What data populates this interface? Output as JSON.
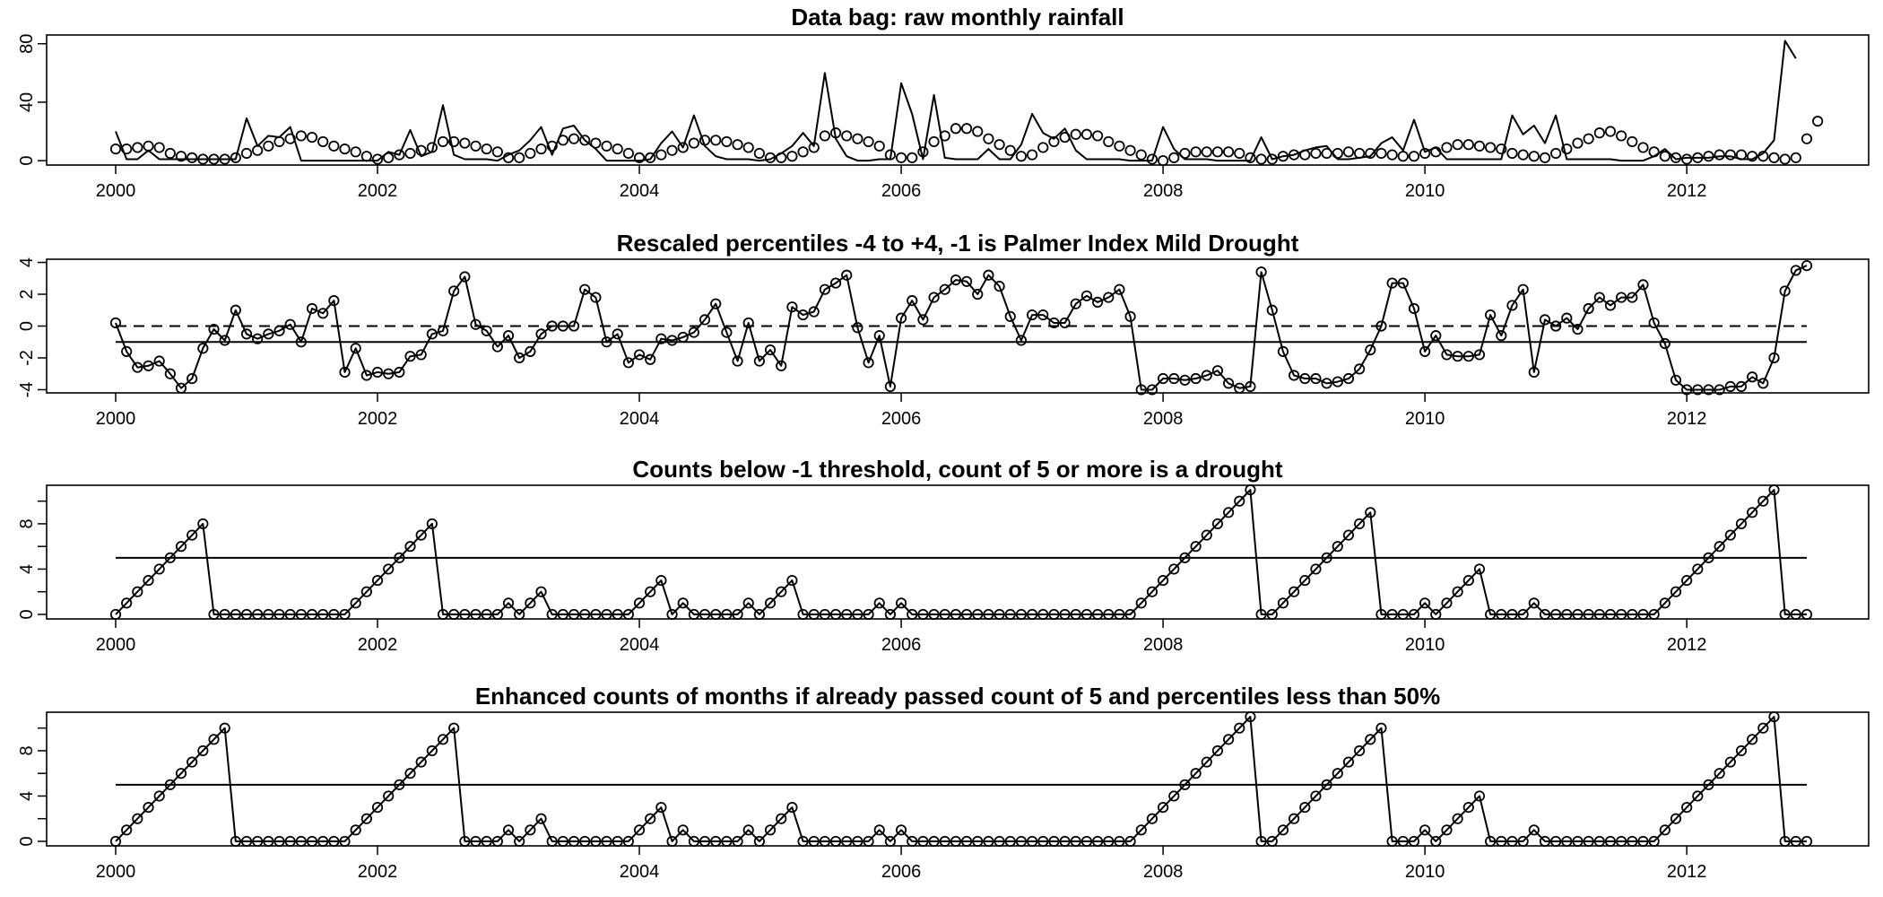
{
  "chart_data": [
    {
      "type": "line",
      "title": "Data bag: raw monthly rainfall",
      "x_start": 2000,
      "months": 156,
      "x_ticks": [
        2000,
        2002,
        2004,
        2006,
        2008,
        2010,
        2012
      ],
      "y_ticks": [
        0,
        40,
        80
      ],
      "ylim": [
        -3,
        86
      ],
      "series": [
        {
          "style": "line",
          "values": [
            20,
            1,
            1,
            7,
            1,
            1,
            1,
            1,
            1,
            1,
            1,
            1,
            29,
            10,
            17,
            16,
            23,
            0,
            0,
            0,
            0,
            0,
            0,
            0,
            0,
            6,
            4,
            21,
            3,
            6,
            38,
            4,
            1,
            1,
            1,
            0,
            4,
            7,
            14,
            23,
            4,
            22,
            24,
            14,
            8,
            0,
            0,
            0,
            0,
            1,
            12,
            20,
            9,
            31,
            10,
            3,
            1,
            1,
            1,
            0,
            1,
            5,
            10,
            19,
            10,
            60,
            15,
            3,
            0,
            0,
            1,
            1,
            53,
            32,
            1,
            45,
            2,
            1,
            1,
            1,
            8,
            1,
            1,
            11,
            32,
            19,
            15,
            22,
            7,
            1,
            1,
            1,
            1,
            0,
            0,
            0,
            23,
            8,
            1,
            1,
            1,
            0,
            0,
            0,
            0,
            16,
            1,
            3,
            4,
            7,
            9,
            10,
            1,
            1,
            2,
            3,
            12,
            16,
            7,
            28,
            6,
            9,
            1,
            1,
            1,
            1,
            1,
            1,
            31,
            18,
            24,
            12,
            31,
            1,
            1,
            1,
            1,
            1,
            0,
            0,
            0,
            3,
            8,
            1,
            2,
            2,
            2,
            3,
            3,
            1,
            1,
            5,
            14,
            82,
            70
          ]
        },
        {
          "style": "points",
          "values": [
            8,
            8,
            9,
            10,
            9,
            5,
            3,
            2,
            1,
            1,
            1,
            2,
            5,
            7,
            10,
            13,
            15,
            17,
            16,
            13,
            10,
            8,
            6,
            3,
            1,
            2,
            4,
            5,
            7,
            9,
            13,
            13,
            12,
            10,
            8,
            6,
            2,
            2,
            5,
            8,
            10,
            14,
            15,
            14,
            12,
            10,
            8,
            5,
            2,
            2,
            4,
            7,
            9,
            12,
            14,
            14,
            13,
            11,
            9,
            5,
            2,
            2,
            3,
            6,
            9,
            17,
            19,
            17,
            15,
            13,
            10,
            4,
            2,
            2,
            6,
            13,
            17,
            22,
            22,
            20,
            15,
            11,
            7,
            3,
            4,
            9,
            13,
            16,
            18,
            18,
            17,
            13,
            10,
            7,
            4,
            1,
            0,
            2,
            5,
            6,
            6,
            6,
            6,
            5,
            2,
            1,
            1,
            3,
            4,
            4,
            5,
            5,
            5,
            6,
            5,
            5,
            5,
            4,
            3,
            3,
            5,
            6,
            9,
            11,
            11,
            10,
            9,
            8,
            5,
            4,
            3,
            2,
            5,
            8,
            12,
            15,
            19,
            20,
            17,
            13,
            9,
            6,
            3,
            2,
            1,
            2,
            3,
            4,
            4,
            4,
            3,
            3,
            2,
            1,
            2,
            15,
            27
          ]
        }
      ]
    },
    {
      "type": "line",
      "title": "Rescaled percentiles -4 to +4, -1 is Palmer Index Mild Drought",
      "x_start": 2000,
      "months": 156,
      "x_ticks": [
        2000,
        2002,
        2004,
        2006,
        2008,
        2010,
        2012
      ],
      "y_ticks": [
        -4,
        -2,
        0,
        2,
        4
      ],
      "ylim": [
        -4.2,
        4.2
      ],
      "reference_lines": [
        {
          "y": 0,
          "dash": true
        },
        {
          "y": -1,
          "dash": false
        }
      ],
      "series": [
        {
          "style": "line+points",
          "values": [
            0.2,
            -1.6,
            -2.6,
            -2.5,
            -2.2,
            -3,
            -3.9,
            -3.3,
            -1.4,
            -0.2,
            -0.9,
            1,
            -0.5,
            -0.8,
            -0.5,
            -0.3,
            0.1,
            -1,
            1.1,
            0.8,
            1.6,
            -2.9,
            -1.4,
            -3.1,
            -2.9,
            -3,
            -2.9,
            -1.9,
            -1.8,
            -0.5,
            -0.3,
            2.2,
            3.1,
            0.1,
            -0.3,
            -1.3,
            -0.6,
            -2,
            -1.6,
            -0.5,
            0,
            0,
            0,
            2.3,
            1.8,
            -1,
            -0.5,
            -2.3,
            -1.8,
            -2.1,
            -0.8,
            -0.9,
            -0.7,
            -0.4,
            0.4,
            1.4,
            -0.4,
            -2.2,
            0.2,
            -2.2,
            -1.5,
            -2.5,
            1.2,
            0.7,
            0.9,
            2.3,
            2.7,
            3.2,
            -0.1,
            -2.3,
            -0.6,
            -3.8,
            0.5,
            1.6,
            0.4,
            1.8,
            2.3,
            2.9,
            2.8,
            2,
            3.2,
            2.5,
            0.6,
            -0.9,
            0.7,
            0.7,
            0.2,
            0.2,
            1.4,
            1.9,
            1.5,
            1.8,
            2.3,
            0.6,
            -4,
            -4,
            -3.3,
            -3.3,
            -3.4,
            -3.3,
            -3.1,
            -2.8,
            -3.6,
            -3.9,
            -3.8,
            3.4,
            1,
            -1.6,
            -3.1,
            -3.3,
            -3.3,
            -3.6,
            -3.5,
            -3.3,
            -2.7,
            -1.5,
            0,
            2.7,
            2.7,
            1.1,
            -1.6,
            -0.6,
            -1.8,
            -1.9,
            -1.9,
            -1.8,
            0.7,
            -0.6,
            1.3,
            2.3,
            -2.9,
            0.4,
            0,
            0.5,
            -0.2,
            1.1,
            1.8,
            1.3,
            1.8,
            1.8,
            2.6,
            0.2,
            -1.1,
            -3.4,
            -4,
            -4,
            -4,
            -4,
            -3.8,
            -3.8,
            -3.2,
            -3.6,
            -2,
            2.2,
            3.5,
            3.8
          ]
        }
      ]
    },
    {
      "type": "line",
      "title": "Counts below -1 threshold, count of 5 or more is a drought",
      "x_start": 2000,
      "months": 156,
      "x_ticks": [
        2000,
        2002,
        2004,
        2006,
        2008,
        2010,
        2012
      ],
      "y_ticks": [
        0,
        4,
        8
      ],
      "minor_y_ticks": [
        2,
        6,
        10
      ],
      "ylim": [
        -0.4,
        11.4
      ],
      "reference_lines": [
        {
          "y": 5,
          "dash": false
        }
      ],
      "series": [
        {
          "style": "line+points",
          "values": [
            0,
            1,
            2,
            3,
            4,
            5,
            6,
            7,
            8,
            0,
            0,
            0,
            0,
            0,
            0,
            0,
            0,
            0,
            0,
            0,
            0,
            0,
            1,
            2,
            3,
            4,
            5,
            6,
            7,
            8,
            0,
            0,
            0,
            0,
            0,
            0,
            1,
            0,
            1,
            2,
            0,
            0,
            0,
            0,
            0,
            0,
            0,
            0,
            1,
            2,
            3,
            0,
            1,
            0,
            0,
            0,
            0,
            0,
            1,
            0,
            1,
            2,
            3,
            0,
            0,
            0,
            0,
            0,
            0,
            0,
            1,
            0,
            1,
            0,
            0,
            0,
            0,
            0,
            0,
            0,
            0,
            0,
            0,
            0,
            0,
            0,
            0,
            0,
            0,
            0,
            0,
            0,
            0,
            0,
            1,
            2,
            3,
            4,
            5,
            6,
            7,
            8,
            9,
            10,
            11,
            0,
            0,
            1,
            2,
            3,
            4,
            5,
            6,
            7,
            8,
            9,
            0,
            0,
            0,
            0,
            1,
            0,
            1,
            2,
            3,
            4,
            0,
            0,
            0,
            0,
            1,
            0,
            0,
            0,
            0,
            0,
            0,
            0,
            0,
            0,
            0,
            0,
            1,
            2,
            3,
            4,
            5,
            6,
            7,
            8,
            9,
            10,
            11,
            0,
            0,
            0
          ]
        }
      ]
    },
    {
      "type": "line",
      "title": "Enhanced counts of months if already passed count of 5 and percentiles less than 50%",
      "x_start": 2000,
      "months": 156,
      "x_ticks": [
        2000,
        2002,
        2004,
        2006,
        2008,
        2010,
        2012
      ],
      "y_ticks": [
        0,
        4,
        8
      ],
      "minor_y_ticks": [
        2,
        6,
        10
      ],
      "ylim": [
        -0.4,
        11.4
      ],
      "reference_lines": [
        {
          "y": 5,
          "dash": false
        }
      ],
      "series": [
        {
          "style": "line+points",
          "values": [
            0,
            1,
            2,
            3,
            4,
            5,
            6,
            7,
            8,
            9,
            10,
            0,
            0,
            0,
            0,
            0,
            0,
            0,
            0,
            0,
            0,
            0,
            1,
            2,
            3,
            4,
            5,
            6,
            7,
            8,
            9,
            10,
            0,
            0,
            0,
            0,
            1,
            0,
            1,
            2,
            0,
            0,
            0,
            0,
            0,
            0,
            0,
            0,
            1,
            2,
            3,
            0,
            1,
            0,
            0,
            0,
            0,
            0,
            1,
            0,
            1,
            2,
            3,
            0,
            0,
            0,
            0,
            0,
            0,
            0,
            1,
            0,
            1,
            0,
            0,
            0,
            0,
            0,
            0,
            0,
            0,
            0,
            0,
            0,
            0,
            0,
            0,
            0,
            0,
            0,
            0,
            0,
            0,
            0,
            1,
            2,
            3,
            4,
            5,
            6,
            7,
            8,
            9,
            10,
            11,
            0,
            0,
            1,
            2,
            3,
            4,
            5,
            6,
            7,
            8,
            9,
            10,
            0,
            0,
            0,
            1,
            0,
            1,
            2,
            3,
            4,
            0,
            0,
            0,
            0,
            1,
            0,
            0,
            0,
            0,
            0,
            0,
            0,
            0,
            0,
            0,
            0,
            1,
            2,
            3,
            4,
            5,
            6,
            7,
            8,
            9,
            10,
            11,
            0,
            0,
            0
          ]
        }
      ]
    }
  ]
}
